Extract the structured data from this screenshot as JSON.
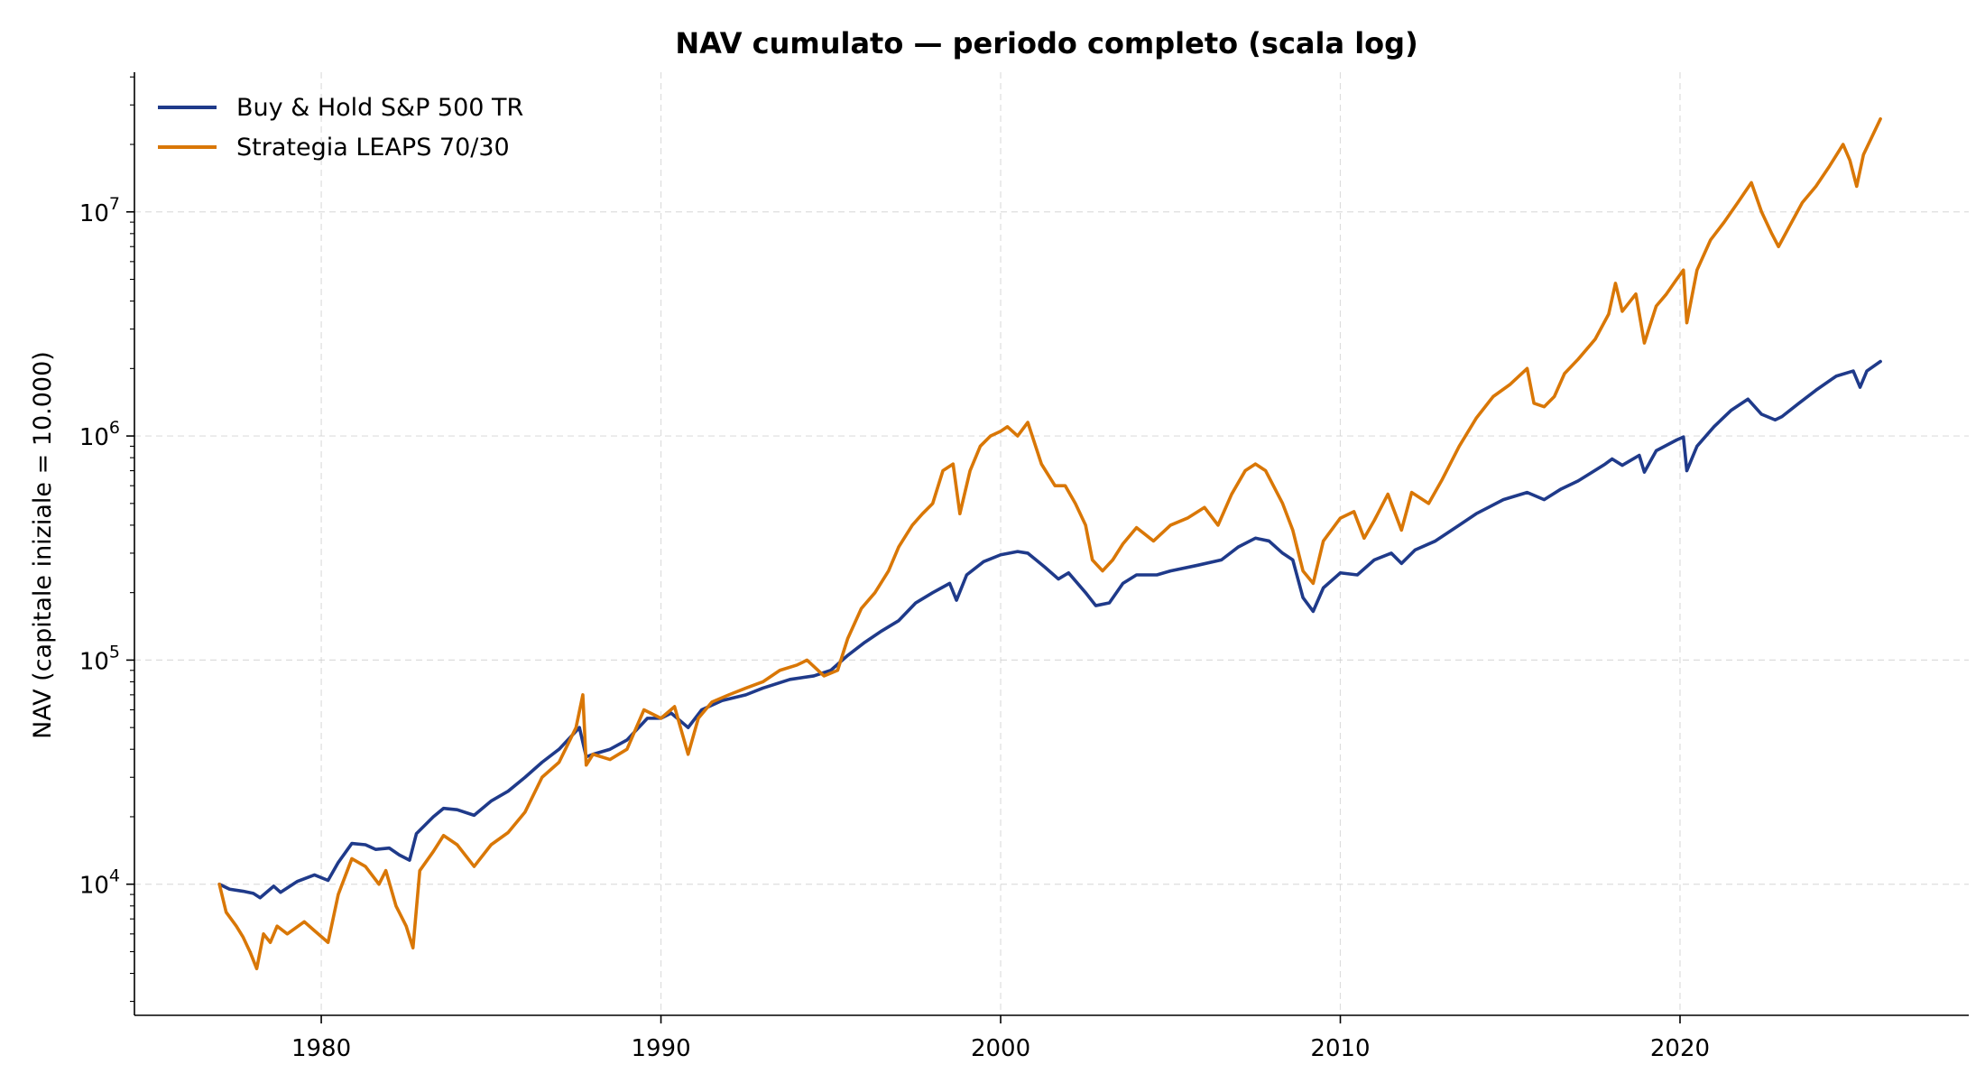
{
  "chart_data": {
    "type": "line",
    "title": "NAV cumulato — periodo completo (scala log)",
    "xlabel": "",
    "ylabel": "NAV (capitale iniziale = 10.000)",
    "y_scale": "log",
    "x_range": [
      1974.5,
      2028.5
    ],
    "ylim": [
      2600,
      42000000
    ],
    "x_ticks": [
      1980,
      1990,
      2000,
      2010,
      2020
    ],
    "x_tick_labels": [
      "1980",
      "1990",
      "2000",
      "2010",
      "2020"
    ],
    "y_ticks": [
      10000,
      100000,
      1000000,
      10000000
    ],
    "y_tick_labels": [
      {
        "base": "10",
        "exp": "4"
      },
      {
        "base": "10",
        "exp": "5"
      },
      {
        "base": "10",
        "exp": "6"
      },
      {
        "base": "10",
        "exp": "7"
      }
    ],
    "grid": true,
    "legend_position": "top-left",
    "series": [
      {
        "name": "Buy & Hold S&P 500 TR",
        "color": "#1f3a8a",
        "points": [
          [
            1977.0,
            10000
          ],
          [
            1977.3,
            9500
          ],
          [
            1977.7,
            9300
          ],
          [
            1978.0,
            9100
          ],
          [
            1978.2,
            8700
          ],
          [
            1978.6,
            9800
          ],
          [
            1978.8,
            9200
          ],
          [
            1979.3,
            10300
          ],
          [
            1979.8,
            11000
          ],
          [
            1980.2,
            10400
          ],
          [
            1980.5,
            12500
          ],
          [
            1980.9,
            15200
          ],
          [
            1981.3,
            15000
          ],
          [
            1981.6,
            14300
          ],
          [
            1982.0,
            14500
          ],
          [
            1982.3,
            13500
          ],
          [
            1982.6,
            12800
          ],
          [
            1982.8,
            16800
          ],
          [
            1983.3,
            20000
          ],
          [
            1983.6,
            21800
          ],
          [
            1984.0,
            21500
          ],
          [
            1984.5,
            20300
          ],
          [
            1985.0,
            23500
          ],
          [
            1985.5,
            26000
          ],
          [
            1986.0,
            30000
          ],
          [
            1986.5,
            35000
          ],
          [
            1987.0,
            40000
          ],
          [
            1987.6,
            50000
          ],
          [
            1987.8,
            37000
          ],
          [
            1988.0,
            38000
          ],
          [
            1988.5,
            40000
          ],
          [
            1989.0,
            44000
          ],
          [
            1989.6,
            55000
          ],
          [
            1990.0,
            55000
          ],
          [
            1990.3,
            58000
          ],
          [
            1990.8,
            50000
          ],
          [
            1991.2,
            60000
          ],
          [
            1991.8,
            66000
          ],
          [
            1992.5,
            70000
          ],
          [
            1993.0,
            75000
          ],
          [
            1993.8,
            82000
          ],
          [
            1994.5,
            85000
          ],
          [
            1995.0,
            90000
          ],
          [
            1995.5,
            105000
          ],
          [
            1996.0,
            120000
          ],
          [
            1996.5,
            135000
          ],
          [
            1997.0,
            150000
          ],
          [
            1997.5,
            180000
          ],
          [
            1998.0,
            200000
          ],
          [
            1998.5,
            220000
          ],
          [
            1998.7,
            185000
          ],
          [
            1999.0,
            240000
          ],
          [
            1999.5,
            275000
          ],
          [
            2000.0,
            295000
          ],
          [
            2000.5,
            305000
          ],
          [
            2000.8,
            300000
          ],
          [
            2001.3,
            260000
          ],
          [
            2001.7,
            230000
          ],
          [
            2002.0,
            245000
          ],
          [
            2002.5,
            200000
          ],
          [
            2002.8,
            175000
          ],
          [
            2003.2,
            180000
          ],
          [
            2003.6,
            220000
          ],
          [
            2004.0,
            240000
          ],
          [
            2004.6,
            240000
          ],
          [
            2005.0,
            250000
          ],
          [
            2005.8,
            265000
          ],
          [
            2006.5,
            280000
          ],
          [
            2007.0,
            320000
          ],
          [
            2007.5,
            350000
          ],
          [
            2007.9,
            340000
          ],
          [
            2008.3,
            300000
          ],
          [
            2008.6,
            280000
          ],
          [
            2008.9,
            190000
          ],
          [
            2009.2,
            165000
          ],
          [
            2009.5,
            210000
          ],
          [
            2010.0,
            245000
          ],
          [
            2010.5,
            240000
          ],
          [
            2011.0,
            280000
          ],
          [
            2011.5,
            300000
          ],
          [
            2011.8,
            270000
          ],
          [
            2012.2,
            310000
          ],
          [
            2012.8,
            340000
          ],
          [
            2013.5,
            400000
          ],
          [
            2014.0,
            450000
          ],
          [
            2014.8,
            520000
          ],
          [
            2015.5,
            560000
          ],
          [
            2016.0,
            520000
          ],
          [
            2016.5,
            580000
          ],
          [
            2017.0,
            630000
          ],
          [
            2017.8,
            750000
          ],
          [
            2018.0,
            790000
          ],
          [
            2018.3,
            740000
          ],
          [
            2018.8,
            820000
          ],
          [
            2018.95,
            690000
          ],
          [
            2019.3,
            860000
          ],
          [
            2019.9,
            960000
          ],
          [
            2020.1,
            990000
          ],
          [
            2020.2,
            700000
          ],
          [
            2020.5,
            900000
          ],
          [
            2021.0,
            1100000
          ],
          [
            2021.5,
            1300000
          ],
          [
            2022.0,
            1460000
          ],
          [
            2022.4,
            1250000
          ],
          [
            2022.8,
            1180000
          ],
          [
            2023.0,
            1220000
          ],
          [
            2023.5,
            1400000
          ],
          [
            2024.0,
            1600000
          ],
          [
            2024.6,
            1850000
          ],
          [
            2025.1,
            1950000
          ],
          [
            2025.3,
            1650000
          ],
          [
            2025.5,
            1950000
          ],
          [
            2025.9,
            2150000
          ]
        ]
      },
      {
        "name": "Strategia LEAPS 70/30",
        "color": "#d97706",
        "points": [
          [
            1977.0,
            10000
          ],
          [
            1977.2,
            7500
          ],
          [
            1977.5,
            6500
          ],
          [
            1977.7,
            5800
          ],
          [
            1977.9,
            5000
          ],
          [
            1978.1,
            4200
          ],
          [
            1978.3,
            6000
          ],
          [
            1978.5,
            5500
          ],
          [
            1978.7,
            6500
          ],
          [
            1979.0,
            6000
          ],
          [
            1979.5,
            6800
          ],
          [
            1979.8,
            6200
          ],
          [
            1980.2,
            5500
          ],
          [
            1980.5,
            9000
          ],
          [
            1980.9,
            13000
          ],
          [
            1981.3,
            12000
          ],
          [
            1981.7,
            10000
          ],
          [
            1981.9,
            11500
          ],
          [
            1982.2,
            8000
          ],
          [
            1982.5,
            6500
          ],
          [
            1982.7,
            5200
          ],
          [
            1982.9,
            11500
          ],
          [
            1983.3,
            14000
          ],
          [
            1983.6,
            16500
          ],
          [
            1984.0,
            15000
          ],
          [
            1984.5,
            12000
          ],
          [
            1985.0,
            15000
          ],
          [
            1985.5,
            17000
          ],
          [
            1986.0,
            21000
          ],
          [
            1986.5,
            30000
          ],
          [
            1987.0,
            35000
          ],
          [
            1987.5,
            50000
          ],
          [
            1987.7,
            70000
          ],
          [
            1987.8,
            34000
          ],
          [
            1988.0,
            38000
          ],
          [
            1988.5,
            36000
          ],
          [
            1989.0,
            40000
          ],
          [
            1989.5,
            60000
          ],
          [
            1990.0,
            55000
          ],
          [
            1990.4,
            62000
          ],
          [
            1990.8,
            38000
          ],
          [
            1991.1,
            55000
          ],
          [
            1991.5,
            65000
          ],
          [
            1992.0,
            70000
          ],
          [
            1992.5,
            75000
          ],
          [
            1993.0,
            80000
          ],
          [
            1993.5,
            90000
          ],
          [
            1994.0,
            95000
          ],
          [
            1994.3,
            100000
          ],
          [
            1994.8,
            85000
          ],
          [
            1995.2,
            90000
          ],
          [
            1995.5,
            125000
          ],
          [
            1995.9,
            170000
          ],
          [
            1996.3,
            200000
          ],
          [
            1996.7,
            250000
          ],
          [
            1997.0,
            320000
          ],
          [
            1997.4,
            400000
          ],
          [
            1997.7,
            450000
          ],
          [
            1998.0,
            500000
          ],
          [
            1998.3,
            700000
          ],
          [
            1998.6,
            750000
          ],
          [
            1998.8,
            450000
          ],
          [
            1999.1,
            700000
          ],
          [
            1999.4,
            900000
          ],
          [
            1999.7,
            1000000
          ],
          [
            2000.0,
            1050000
          ],
          [
            2000.2,
            1100000
          ],
          [
            2000.5,
            1000000
          ],
          [
            2000.8,
            1150000
          ],
          [
            2001.2,
            750000
          ],
          [
            2001.6,
            600000
          ],
          [
            2001.9,
            600000
          ],
          [
            2002.2,
            500000
          ],
          [
            2002.5,
            400000
          ],
          [
            2002.7,
            280000
          ],
          [
            2003.0,
            250000
          ],
          [
            2003.3,
            280000
          ],
          [
            2003.6,
            330000
          ],
          [
            2004.0,
            390000
          ],
          [
            2004.5,
            340000
          ],
          [
            2005.0,
            400000
          ],
          [
            2005.5,
            430000
          ],
          [
            2006.0,
            480000
          ],
          [
            2006.4,
            400000
          ],
          [
            2006.8,
            550000
          ],
          [
            2007.2,
            700000
          ],
          [
            2007.5,
            750000
          ],
          [
            2007.8,
            700000
          ],
          [
            2008.3,
            500000
          ],
          [
            2008.6,
            380000
          ],
          [
            2008.9,
            250000
          ],
          [
            2009.2,
            220000
          ],
          [
            2009.5,
            340000
          ],
          [
            2010.0,
            430000
          ],
          [
            2010.4,
            460000
          ],
          [
            2010.7,
            350000
          ],
          [
            2011.0,
            420000
          ],
          [
            2011.4,
            550000
          ],
          [
            2011.8,
            380000
          ],
          [
            2012.1,
            560000
          ],
          [
            2012.6,
            500000
          ],
          [
            2013.0,
            640000
          ],
          [
            2013.5,
            900000
          ],
          [
            2014.0,
            1200000
          ],
          [
            2014.5,
            1500000
          ],
          [
            2015.0,
            1700000
          ],
          [
            2015.5,
            2000000
          ],
          [
            2015.7,
            1400000
          ],
          [
            2016.0,
            1350000
          ],
          [
            2016.3,
            1500000
          ],
          [
            2016.6,
            1900000
          ],
          [
            2017.0,
            2200000
          ],
          [
            2017.5,
            2700000
          ],
          [
            2017.9,
            3500000
          ],
          [
            2018.1,
            4800000
          ],
          [
            2018.3,
            3600000
          ],
          [
            2018.7,
            4300000
          ],
          [
            2018.95,
            2600000
          ],
          [
            2019.3,
            3800000
          ],
          [
            2019.6,
            4300000
          ],
          [
            2019.9,
            5000000
          ],
          [
            2020.1,
            5500000
          ],
          [
            2020.2,
            3200000
          ],
          [
            2020.5,
            5500000
          ],
          [
            2020.9,
            7500000
          ],
          [
            2021.3,
            9000000
          ],
          [
            2021.7,
            11000000
          ],
          [
            2022.1,
            13500000
          ],
          [
            2022.4,
            10000000
          ],
          [
            2022.7,
            8000000
          ],
          [
            2022.9,
            7000000
          ],
          [
            2023.2,
            8500000
          ],
          [
            2023.6,
            11000000
          ],
          [
            2024.0,
            13000000
          ],
          [
            2024.4,
            16000000
          ],
          [
            2024.8,
            20000000
          ],
          [
            2025.0,
            17000000
          ],
          [
            2025.2,
            13000000
          ],
          [
            2025.4,
            18000000
          ],
          [
            2025.9,
            26000000
          ]
        ]
      }
    ]
  }
}
